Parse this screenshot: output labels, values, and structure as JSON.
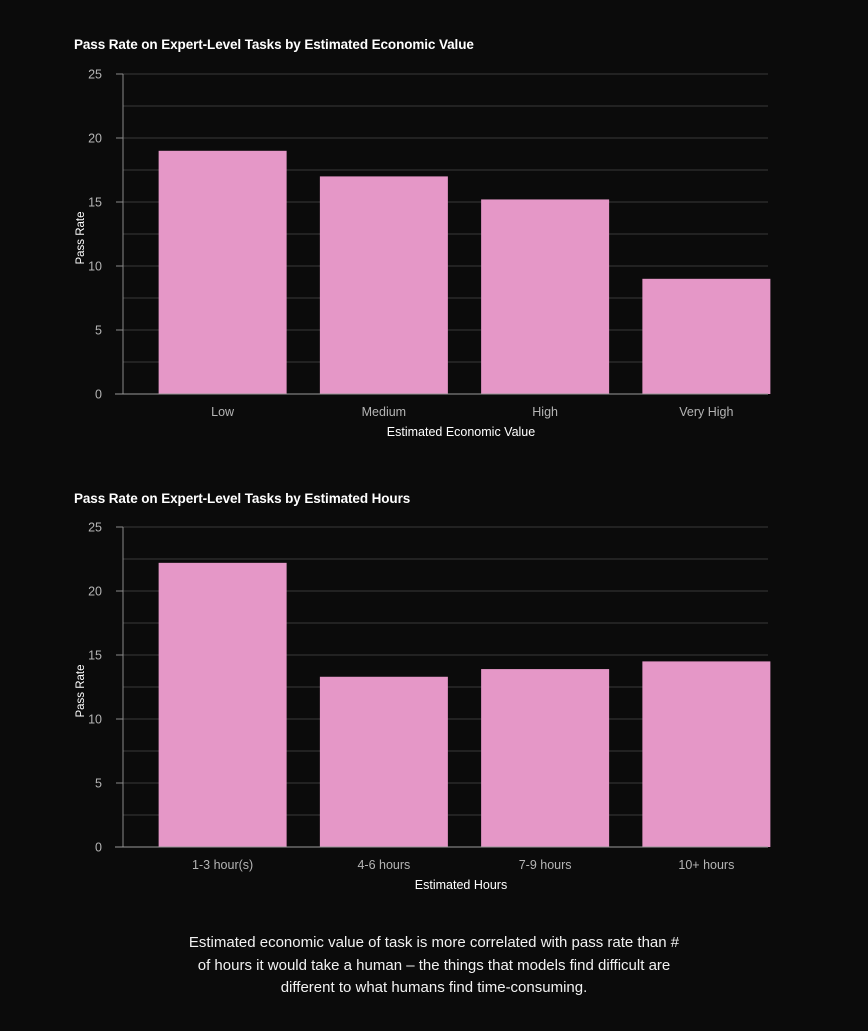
{
  "theme": {
    "background": "#0b0b0b",
    "bar_color": "#e597c7",
    "text_color": "#ffffff",
    "tick_color": "#b5b5b5",
    "grid_color": "#3a3a3a"
  },
  "chart_data": [
    {
      "type": "bar",
      "title": "Pass Rate on Expert-Level Tasks by Estimated Economic Value",
      "xlabel": "Estimated Economic Value",
      "ylabel": "Pass Rate",
      "categories": [
        "Low",
        "Medium",
        "High",
        "Very High"
      ],
      "values": [
        19.0,
        17.0,
        15.2,
        9.0
      ],
      "ylim": [
        0,
        25
      ],
      "yticks": [
        0,
        5,
        10,
        15,
        20,
        25
      ],
      "grid": true
    },
    {
      "type": "bar",
      "title": "Pass Rate on Expert-Level Tasks by Estimated Hours",
      "xlabel": "Estimated Hours",
      "ylabel": "Pass Rate",
      "categories": [
        "1-3 hour(s)",
        "4-6 hours",
        "7-9 hours",
        "10+ hours"
      ],
      "values": [
        22.2,
        13.3,
        13.9,
        14.5
      ],
      "ylim": [
        0,
        25
      ],
      "yticks": [
        0,
        5,
        10,
        15,
        20,
        25
      ],
      "grid": true
    }
  ],
  "caption": "Estimated economic value of task is more correlated with pass rate than # of hours it would take a human – the things that models find difficult are different to what humans find time-consuming."
}
